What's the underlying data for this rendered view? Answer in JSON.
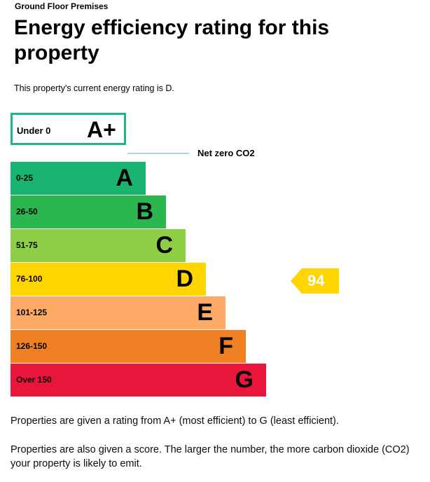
{
  "header": {
    "premises": "Ground Floor Premises",
    "title": "Energy efficiency rating for this property",
    "current_rating_text": "This property's current energy rating is D."
  },
  "chart": {
    "aplus": {
      "range": "Under 0",
      "letter": "A+",
      "color": "#1bb681"
    },
    "net_zero_label": "Net zero CO2",
    "bands": [
      {
        "range": "0-25",
        "letter": "A",
        "color": "#19b46f"
      },
      {
        "range": "26-50",
        "letter": "B",
        "color": "#2cb650"
      },
      {
        "range": "51-75",
        "letter": "C",
        "color": "#8dce46"
      },
      {
        "range": "76-100",
        "letter": "D",
        "color": "#ffd500"
      },
      {
        "range": "101-125",
        "letter": "E",
        "color": "#fcaa65"
      },
      {
        "range": "126-150",
        "letter": "F",
        "color": "#ef8023"
      },
      {
        "range": "Over 150",
        "letter": "G",
        "color": "#e9153b"
      }
    ],
    "current_score": {
      "value": "94",
      "band": "D",
      "color": "#ffd500"
    }
  },
  "footer": {
    "paragraph_1": "Properties are given a rating from A+ (most efficient) to G (least efficient).",
    "paragraph_2": "Properties are also given a score. The larger the number, the more carbon dioxide (CO2) your property is likely to emit."
  }
}
